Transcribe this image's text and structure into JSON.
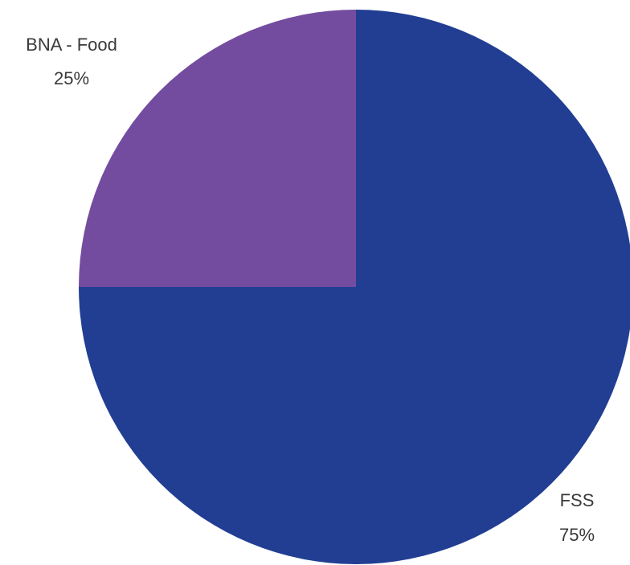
{
  "chart_data": {
    "type": "pie",
    "title": "",
    "start_angle_deg": 0,
    "direction": "clockwise",
    "slices": [
      {
        "label": "FSS",
        "value": 75,
        "display": "75%",
        "color": "#213E93"
      },
      {
        "label": "BNA - Food",
        "value": 25,
        "display": "25%",
        "color": "#744C9F"
      }
    ],
    "legend": "none"
  }
}
